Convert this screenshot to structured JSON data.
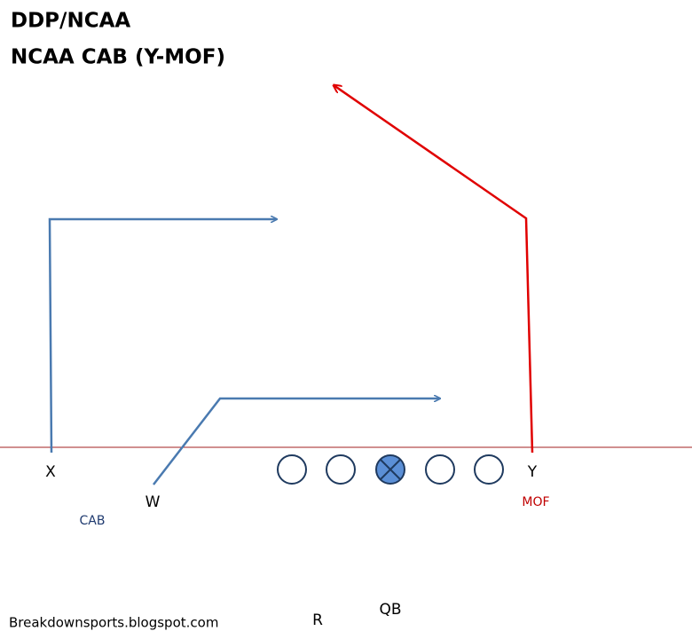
{
  "header": {
    "title": "DDP/NCAA",
    "subtitle": "NCAA CAB (Y-MOF)"
  },
  "players": [
    {
      "label": "X"
    },
    {
      "label": "W"
    },
    {
      "label": "Y"
    },
    {
      "label": "R"
    },
    {
      "label": "QB"
    }
  ],
  "route_labels": [
    {
      "label": "CAB"
    },
    {
      "label": "MOF"
    }
  ],
  "footer": {
    "credit": "Breakdownsports.blogspot.com"
  }
}
